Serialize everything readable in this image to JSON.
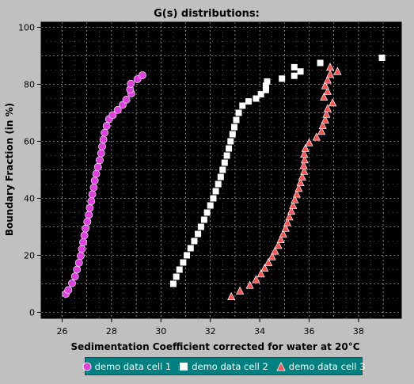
{
  "chart_data": {
    "type": "scatter",
    "title": "G(s) distributions:",
    "xlabel": "Sedimentation Coefficient corrected for water at 20°C",
    "ylabel": "Boundary Fraction (in %)",
    "xlim": [
      25.8,
      39.4
    ],
    "ylim": [
      -2,
      101
    ],
    "xticks": [
      "26",
      "28",
      "30",
      "32",
      "34",
      "36",
      "38"
    ],
    "yticks": [
      "0",
      "20",
      "40",
      "60",
      "80",
      "100"
    ],
    "grid": true,
    "legend_position": "bottom",
    "background": "#000000",
    "series": [
      {
        "name": "demo data cell 1",
        "marker": "circle",
        "color": "#e040e0",
        "points": [
          [
            26.15,
            6.5
          ],
          [
            26.25,
            7.8
          ],
          [
            26.4,
            10.2
          ],
          [
            26.52,
            12.6
          ],
          [
            26.6,
            15.0
          ],
          [
            26.68,
            17.4
          ],
          [
            26.75,
            19.8
          ],
          [
            26.8,
            22.2
          ],
          [
            26.85,
            24.6
          ],
          [
            26.9,
            27.0
          ],
          [
            26.95,
            29.4
          ],
          [
            27.02,
            31.8
          ],
          [
            27.08,
            34.2
          ],
          [
            27.12,
            36.6
          ],
          [
            27.18,
            39.0
          ],
          [
            27.22,
            41.4
          ],
          [
            27.28,
            43.8
          ],
          [
            27.32,
            46.2
          ],
          [
            27.38,
            48.6
          ],
          [
            27.45,
            51.0
          ],
          [
            27.52,
            53.4
          ],
          [
            27.58,
            55.8
          ],
          [
            27.62,
            58.2
          ],
          [
            27.67,
            60.6
          ],
          [
            27.72,
            63.0
          ],
          [
            27.8,
            65.4
          ],
          [
            27.9,
            67.8
          ],
          [
            28.05,
            69.2
          ],
          [
            28.25,
            71.0
          ],
          [
            28.45,
            72.8
          ],
          [
            28.6,
            74.6
          ],
          [
            28.8,
            76.8
          ],
          [
            28.75,
            78.2
          ],
          [
            28.78,
            80.2
          ],
          [
            29.05,
            81.8
          ],
          [
            29.25,
            83.2
          ]
        ]
      },
      {
        "name": "demo data cell 2",
        "marker": "square",
        "color": "#ffffff",
        "points": [
          [
            30.5,
            10.0
          ],
          [
            30.62,
            12.5
          ],
          [
            30.75,
            15.0
          ],
          [
            30.9,
            17.5
          ],
          [
            31.05,
            20.0
          ],
          [
            31.2,
            22.5
          ],
          [
            31.35,
            25.0
          ],
          [
            31.5,
            27.5
          ],
          [
            31.62,
            30.0
          ],
          [
            31.75,
            32.5
          ],
          [
            31.87,
            35.0
          ],
          [
            32.0,
            37.5
          ],
          [
            32.12,
            40.0
          ],
          [
            32.22,
            42.5
          ],
          [
            32.32,
            45.0
          ],
          [
            32.42,
            47.5
          ],
          [
            32.5,
            50.0
          ],
          [
            32.58,
            52.5
          ],
          [
            32.67,
            55.0
          ],
          [
            32.75,
            57.5
          ],
          [
            32.82,
            60.0
          ],
          [
            32.9,
            62.5
          ],
          [
            32.97,
            65.0
          ],
          [
            33.05,
            67.5
          ],
          [
            33.15,
            70.0
          ],
          [
            33.3,
            72.5
          ],
          [
            33.55,
            74.0
          ],
          [
            33.85,
            75.0
          ],
          [
            34.05,
            76.5
          ],
          [
            34.25,
            78.0
          ],
          [
            34.25,
            79.5
          ],
          [
            34.3,
            81.0
          ],
          [
            34.9,
            82.0
          ],
          [
            35.4,
            83.0
          ],
          [
            35.65,
            84.5
          ],
          [
            35.4,
            86.0
          ],
          [
            36.45,
            87.5
          ],
          [
            38.95,
            89.3
          ]
        ]
      },
      {
        "name": "demo data cell 3",
        "marker": "triangle",
        "color": "#ff5050",
        "points": [
          [
            32.85,
            5.5
          ],
          [
            33.2,
            7.5
          ],
          [
            33.6,
            9.5
          ],
          [
            33.85,
            11.5
          ],
          [
            34.05,
            13.5
          ],
          [
            34.2,
            15.5
          ],
          [
            34.35,
            17.5
          ],
          [
            34.5,
            19.5
          ],
          [
            34.62,
            21.5
          ],
          [
            34.75,
            23.5
          ],
          [
            34.85,
            25.5
          ],
          [
            34.95,
            27.5
          ],
          [
            35.05,
            29.5
          ],
          [
            35.12,
            31.5
          ],
          [
            35.2,
            33.5
          ],
          [
            35.28,
            35.5
          ],
          [
            35.35,
            37.5
          ],
          [
            35.42,
            39.5
          ],
          [
            35.5,
            41.5
          ],
          [
            35.58,
            43.5
          ],
          [
            35.65,
            45.5
          ],
          [
            35.72,
            47.5
          ],
          [
            35.8,
            49.5
          ],
          [
            35.78,
            51.5
          ],
          [
            35.82,
            53.5
          ],
          [
            35.8,
            55.5
          ],
          [
            35.85,
            57.5
          ],
          [
            36.0,
            59.5
          ],
          [
            36.3,
            61.5
          ],
          [
            36.5,
            63.5
          ],
          [
            36.55,
            65.5
          ],
          [
            36.65,
            67.5
          ],
          [
            36.7,
            69.5
          ],
          [
            36.75,
            71.5
          ],
          [
            36.95,
            73.5
          ],
          [
            36.6,
            75.5
          ],
          [
            36.75,
            77.5
          ],
          [
            36.65,
            79.5
          ],
          [
            36.75,
            81.5
          ],
          [
            36.85,
            83.5
          ],
          [
            37.15,
            84.5
          ],
          [
            36.85,
            86.0
          ]
        ]
      }
    ]
  }
}
